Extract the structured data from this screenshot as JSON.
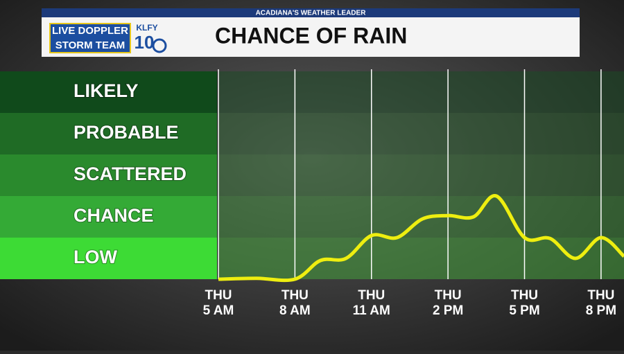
{
  "header": {
    "tagline": "ACADIANA'S WEATHER LEADER",
    "brand_line1": "LIVE DOPPLER",
    "brand_line2": "STORM TEAM",
    "station": "KLFY",
    "channel": "10"
  },
  "chart_data": {
    "type": "line",
    "title": "CHANCE OF RAIN",
    "y_categories": [
      "LOW",
      "CHANCE",
      "SCATTERED",
      "PROBABLE",
      "LIKELY"
    ],
    "ylim": [
      0,
      5
    ],
    "xlim": [
      5,
      20.9
    ],
    "xticks": [
      {
        "value": 5,
        "label": "THU\n5 AM"
      },
      {
        "value": 8,
        "label": "THU\n8 AM"
      },
      {
        "value": 11,
        "label": "THU\n11 AM"
      },
      {
        "value": 14,
        "label": "THU\n2 PM"
      },
      {
        "value": 17,
        "label": "THU\n5 PM"
      },
      {
        "value": 20,
        "label": "THU\n8 PM"
      }
    ],
    "series": [
      {
        "name": "Chance of rain",
        "color": "#eeee10",
        "x": [
          5,
          6.5,
          8,
          9,
          10,
          11,
          12,
          13,
          14,
          15,
          15.9,
          17,
          18,
          19,
          20,
          20.9
        ],
        "values": [
          0,
          0.02,
          0,
          0.45,
          0.5,
          1.05,
          1.0,
          1.45,
          1.53,
          1.5,
          2.0,
          1.0,
          0.98,
          0.5,
          1.0,
          0.55
        ]
      }
    ]
  }
}
